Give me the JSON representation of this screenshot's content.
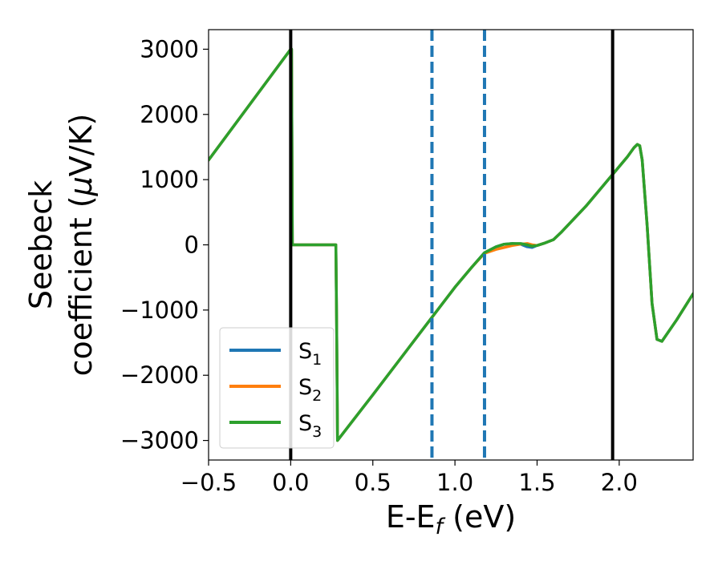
{
  "chart_data": {
    "type": "line",
    "title": "",
    "xlabel": "E-E",
    "xlabel_sub": "f",
    "xlabel_unit": " (eV)",
    "ylabel_line1": "Seebeck",
    "ylabel_line2_prefix": "coefficient  (",
    "ylabel_mu": "μ",
    "ylabel_line2_suffix": "V/K)",
    "xlim": [
      -0.5,
      2.45
    ],
    "ylim": [
      -3300,
      3300
    ],
    "xticks": [
      -0.5,
      0.0,
      0.5,
      1.0,
      1.5,
      2.0
    ],
    "xtick_labels": [
      "−0.5",
      "0.0",
      "0.5",
      "1.0",
      "1.5",
      "2.0"
    ],
    "yticks": [
      -3000,
      -2000,
      -1000,
      0,
      1000,
      2000,
      3000
    ],
    "ytick_labels": [
      "−3000",
      "−2000",
      "−1000",
      "0",
      "1000",
      "2000",
      "3000"
    ],
    "vlines_solid": [
      0.0,
      1.96
    ],
    "vlines_dashed": [
      0.86,
      1.18
    ],
    "legend_position": "lower-left",
    "grid": false,
    "series": [
      {
        "name": "S",
        "sub": "1",
        "color": "#1f77b4",
        "x": [
          -0.5,
          0.0,
          0.005,
          0.01,
          0.275,
          0.28,
          0.285,
          0.5,
          1.0,
          1.1,
          1.18,
          1.25,
          1.3,
          1.35,
          1.4,
          1.44,
          1.47,
          1.5,
          1.55,
          1.6,
          1.65,
          1.8,
          1.96,
          2.05,
          2.09,
          2.11,
          2.125,
          2.14,
          2.17,
          2.2,
          2.23,
          2.26,
          2.35,
          2.45
        ],
        "y": [
          1300,
          3000,
          3000,
          0,
          0,
          -1300,
          -3000,
          -2300,
          -650,
          -350,
          -120,
          -30,
          10,
          20,
          10,
          -30,
          -40,
          -10,
          30,
          80,
          200,
          600,
          1080,
          1350,
          1490,
          1540,
          1520,
          1300,
          300,
          -900,
          -1450,
          -1480,
          -1150,
          -750
        ]
      },
      {
        "name": "S",
        "sub": "2",
        "color": "#ff7f0e",
        "x": [
          -0.5,
          0.0,
          0.005,
          0.01,
          0.275,
          0.28,
          0.285,
          0.5,
          1.0,
          1.1,
          1.18,
          1.25,
          1.3,
          1.35,
          1.4,
          1.44,
          1.47,
          1.5,
          1.55,
          1.6,
          1.65,
          1.8,
          1.96,
          2.05,
          2.09,
          2.11,
          2.125,
          2.14,
          2.17,
          2.2,
          2.23,
          2.26,
          2.35,
          2.45
        ],
        "y": [
          1300,
          3000,
          3000,
          0,
          0,
          -1300,
          -3000,
          -2300,
          -650,
          -350,
          -130,
          -70,
          -40,
          -10,
          10,
          20,
          0,
          -10,
          30,
          80,
          200,
          600,
          1080,
          1350,
          1490,
          1540,
          1520,
          1300,
          300,
          -900,
          -1450,
          -1480,
          -1150,
          -750
        ]
      },
      {
        "name": "S",
        "sub": "3",
        "color": "#2ca02c",
        "x": [
          -0.5,
          0.0,
          0.005,
          0.01,
          0.275,
          0.28,
          0.285,
          0.5,
          1.0,
          1.1,
          1.18,
          1.25,
          1.3,
          1.35,
          1.4,
          1.44,
          1.47,
          1.5,
          1.55,
          1.6,
          1.65,
          1.8,
          1.96,
          2.05,
          2.09,
          2.11,
          2.125,
          2.14,
          2.17,
          2.2,
          2.23,
          2.26,
          2.35,
          2.45
        ],
        "y": [
          1300,
          3000,
          3000,
          0,
          0,
          -1300,
          -3000,
          -2300,
          -650,
          -350,
          -120,
          -30,
          10,
          20,
          20,
          0,
          -20,
          -10,
          30,
          80,
          200,
          600,
          1080,
          1350,
          1490,
          1540,
          1520,
          1300,
          300,
          -900,
          -1450,
          -1480,
          -1150,
          -750
        ]
      }
    ]
  }
}
